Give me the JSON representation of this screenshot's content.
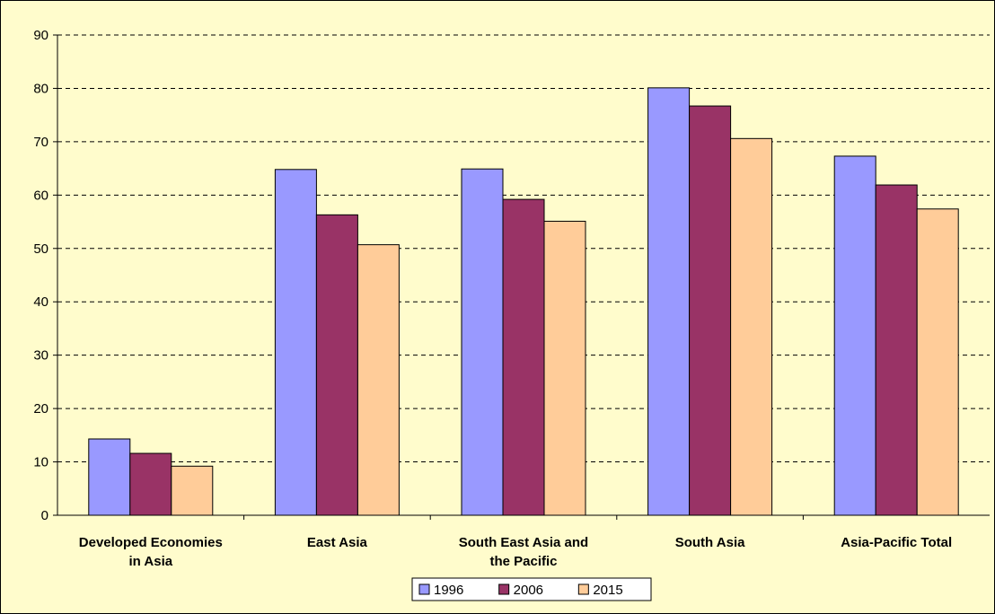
{
  "chart_data": {
    "type": "bar",
    "title": "",
    "xlabel": "",
    "ylabel": "",
    "ylim": [
      0,
      90
    ],
    "yticks": [
      0,
      10,
      20,
      30,
      40,
      50,
      60,
      70,
      80,
      90
    ],
    "grid": "horizontal dashed",
    "legend_position": "bottom",
    "categories": [
      [
        "Developed Economies",
        "in Asia"
      ],
      [
        "East Asia"
      ],
      [
        "South East Asia and",
        "the Pacific"
      ],
      [
        "South Asia"
      ],
      [
        "Asia-Pacific Total"
      ]
    ],
    "series": [
      {
        "name": "1996",
        "color": "#9999ff",
        "values": [
          14.3,
          64.8,
          64.9,
          80.1,
          67.3
        ]
      },
      {
        "name": "2006",
        "color": "#993366",
        "values": [
          11.6,
          56.3,
          59.2,
          76.7,
          61.9
        ]
      },
      {
        "name": "2015",
        "color": "#ffcc99",
        "values": [
          9.2,
          50.7,
          55.1,
          70.6,
          57.4
        ]
      }
    ]
  },
  "colors": {
    "plot_background": "#fffccc",
    "grid": "#000000"
  }
}
